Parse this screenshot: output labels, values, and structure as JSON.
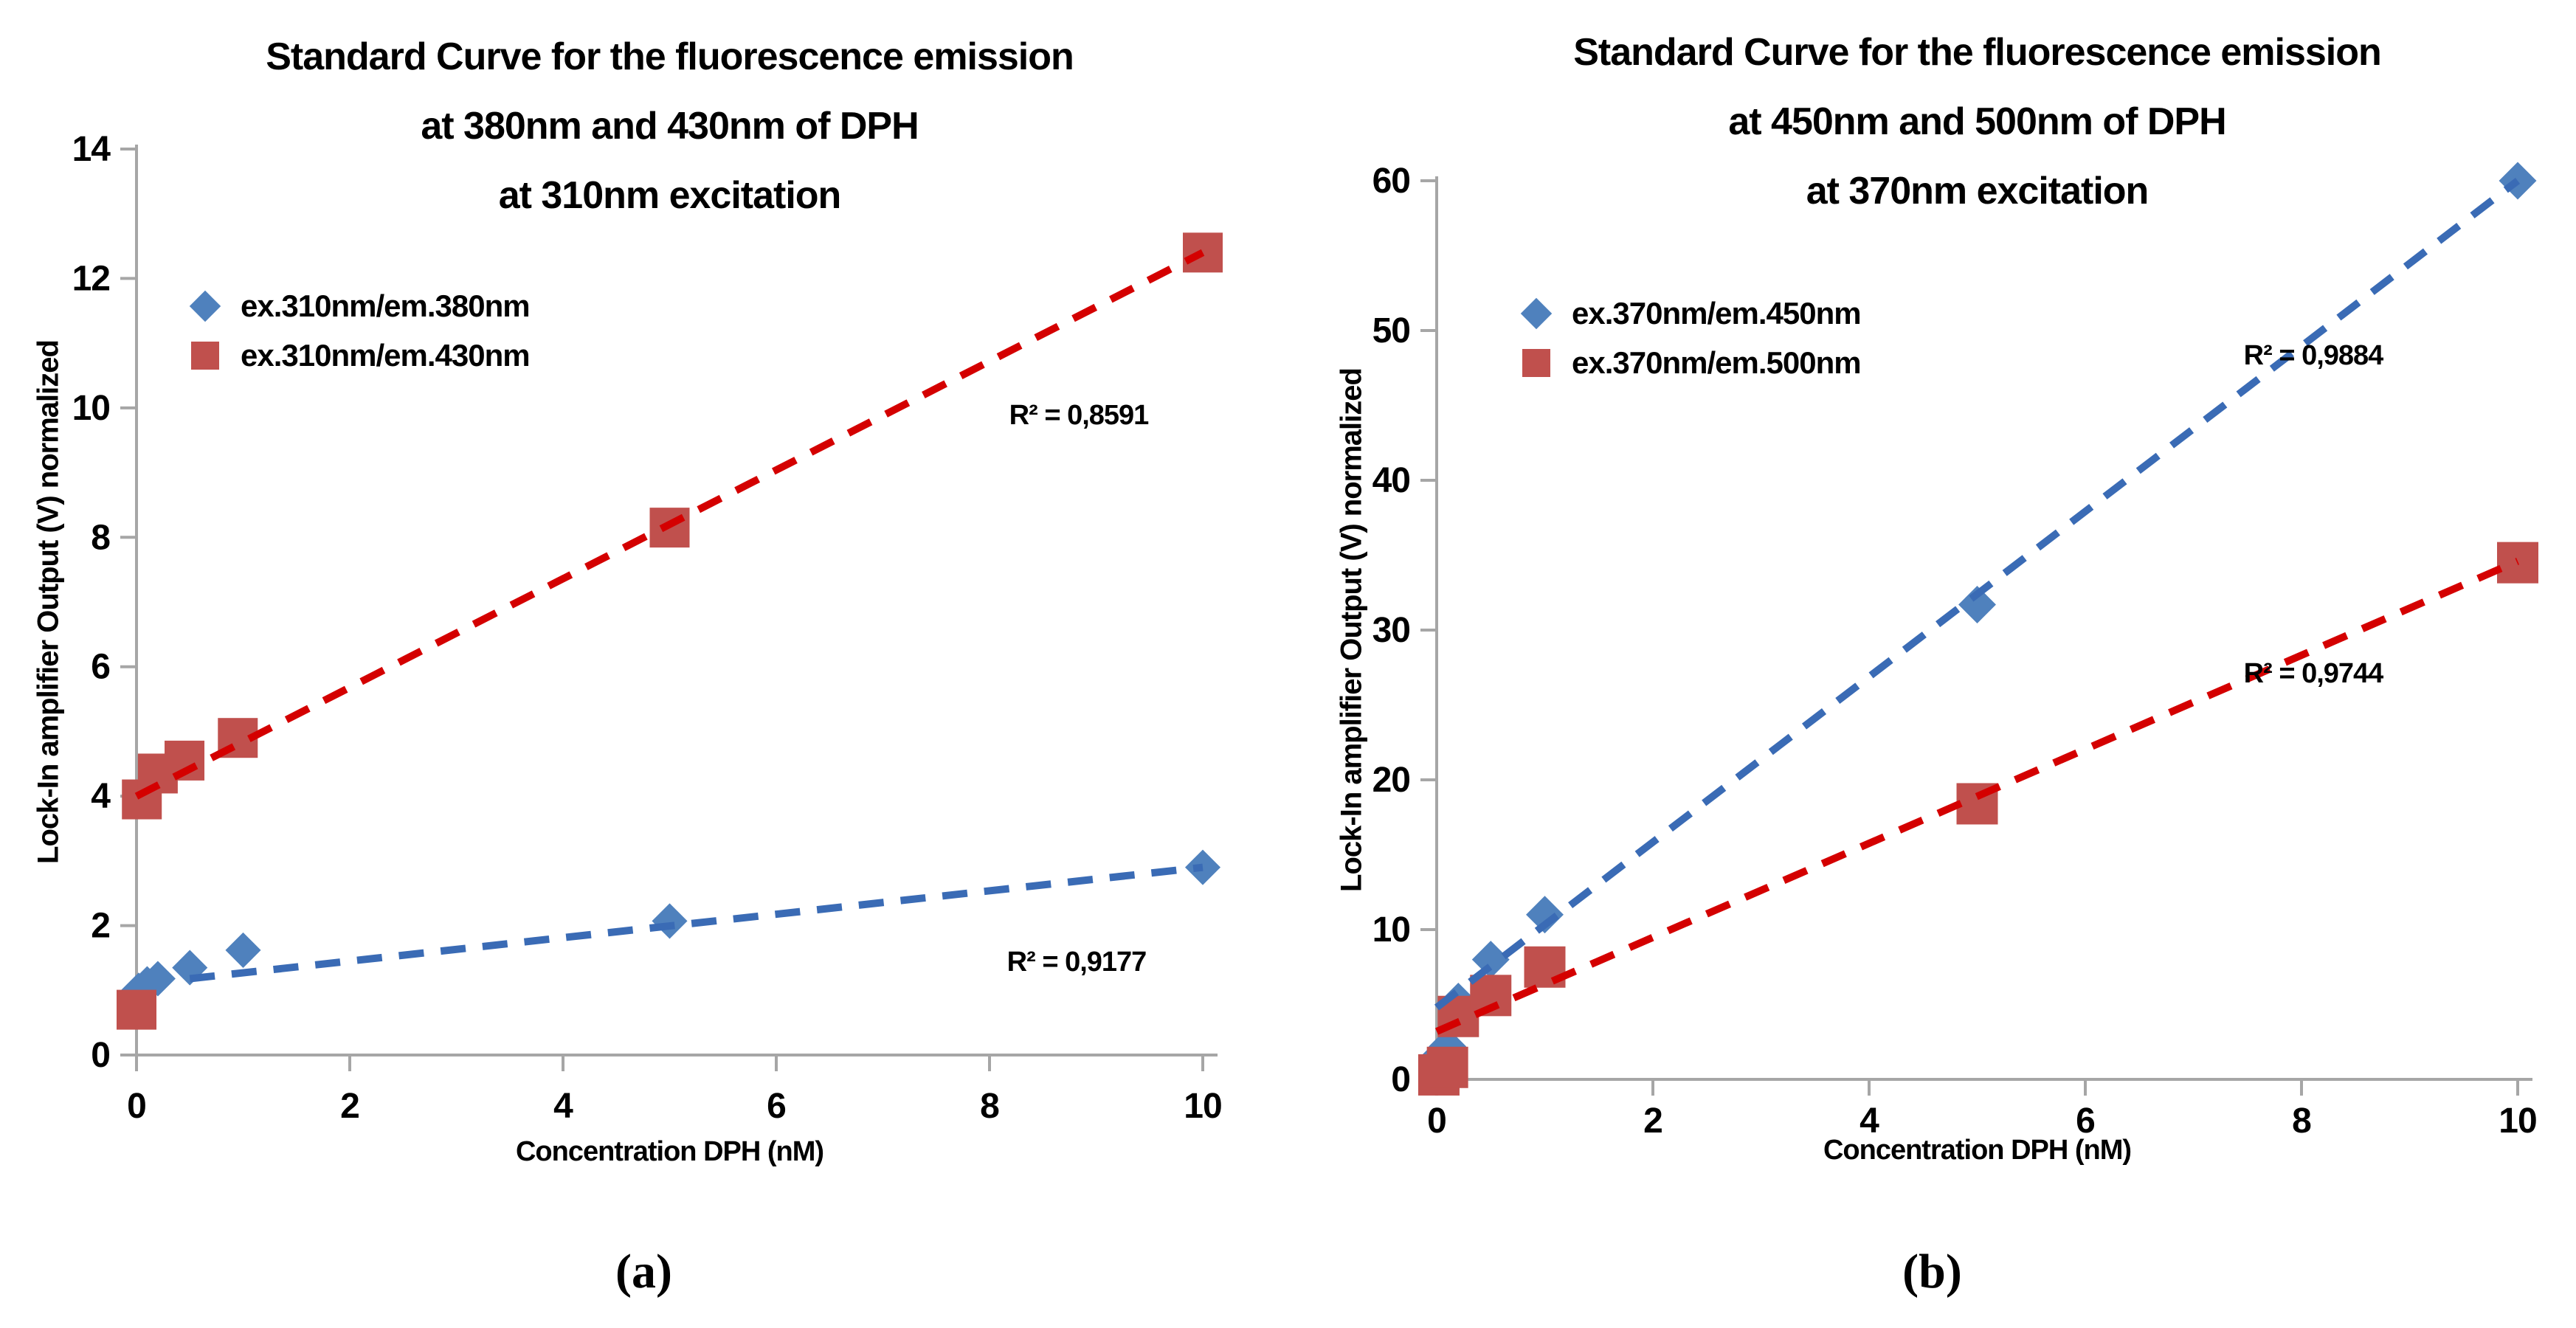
{
  "page": {
    "background": "#ffffff"
  },
  "colors": {
    "axis": "#a6a6a6",
    "text": "#000000",
    "blue_marker": "#4f81bd",
    "red_marker": "#c0504d",
    "blue_trend": "#3a6bb5",
    "red_trend": "#d40000"
  },
  "chart_data": [
    {
      "type": "scatter",
      "title_lines": [
        "Standard Curve for the fluorescence emission",
        "at 380nm and 430nm of DPH",
        "at 310nm excitation"
      ],
      "xlabel": "Concentration DPH (nM)",
      "ylabel": "Lock-In amplifier Output (V) normalized",
      "caption": "(a)",
      "xlim": [
        0,
        10
      ],
      "ylim": [
        0,
        14
      ],
      "xticks": [
        0,
        2,
        4,
        6,
        8,
        10
      ],
      "yticks": [
        0,
        2,
        4,
        6,
        8,
        10,
        12,
        14
      ],
      "grid": false,
      "legend_position": "upper-left-inside",
      "series": [
        {
          "name": "ex.310nm/em.380nm",
          "marker": "diamond",
          "color": "#4f81bd",
          "trend_color": "#3a6bb5",
          "points": [
            [
              0.02,
              1.0
            ],
            [
              0.1,
              1.1
            ],
            [
              0.2,
              1.18
            ],
            [
              0.5,
              1.35
            ],
            [
              1,
              1.62
            ],
            [
              5,
              2.07
            ],
            [
              10,
              2.9
            ]
          ],
          "trend": {
            "x": [
              0.5,
              10
            ],
            "y": [
              1.18,
              2.9
            ]
          },
          "r2": "R² = 0,9177"
        },
        {
          "name": "ex.310nm/em.430nm",
          "marker": "square",
          "color": "#c0504d",
          "trend_color": "#d40000",
          "points": [
            [
              0,
              0.7
            ],
            [
              0.05,
              3.95
            ],
            [
              0.2,
              4.35
            ],
            [
              0.45,
              4.55
            ],
            [
              0.95,
              4.9
            ],
            [
              5,
              8.15
            ],
            [
              10,
              12.4
            ]
          ],
          "trend": {
            "x": [
              0,
              10
            ],
            "y": [
              4.0,
              12.4
            ]
          },
          "r2": "R² = 0,8591"
        }
      ]
    },
    {
      "type": "scatter",
      "title_lines": [
        "Standard Curve for the fluorescence emission",
        "at 450nm and 500nm of DPH",
        "at 370nm excitation"
      ],
      "xlabel": "Concentration DPH (nM)",
      "ylabel": "Lock-In amplifier Output (V) normalized",
      "caption": "(b)",
      "xlim": [
        0,
        10
      ],
      "ylim": [
        0,
        60
      ],
      "xticks": [
        0,
        2,
        4,
        6,
        8,
        10
      ],
      "yticks": [
        0,
        10,
        20,
        30,
        40,
        50,
        60
      ],
      "grid": false,
      "legend_position": "upper-left-inside",
      "series": [
        {
          "name": "ex.370nm/em.450nm",
          "marker": "diamond",
          "color": "#4f81bd",
          "trend_color": "#3a6bb5",
          "points": [
            [
              0.02,
              1.5
            ],
            [
              0.1,
              2.2
            ],
            [
              0.2,
              5.2
            ],
            [
              0.5,
              8.0
            ],
            [
              1,
              11.0
            ],
            [
              5,
              31.7
            ],
            [
              10,
              60.0
            ]
          ],
          "trend": {
            "x": [
              0,
              10
            ],
            "y": [
              4.8,
              60.0
            ]
          },
          "r2": "R² = 0,9884"
        },
        {
          "name": "ex.370nm/em.500nm",
          "marker": "square",
          "color": "#c0504d",
          "trend_color": "#d40000",
          "points": [
            [
              0.02,
              0.3
            ],
            [
              0.1,
              0.8
            ],
            [
              0.2,
              4.2
            ],
            [
              0.5,
              5.6
            ],
            [
              1,
              7.5
            ],
            [
              5,
              18.4
            ],
            [
              10,
              34.5
            ]
          ],
          "trend": {
            "x": [
              0,
              10
            ],
            "y": [
              3.2,
              34.6
            ]
          },
          "r2": "R² = 0,9744"
        }
      ]
    }
  ]
}
